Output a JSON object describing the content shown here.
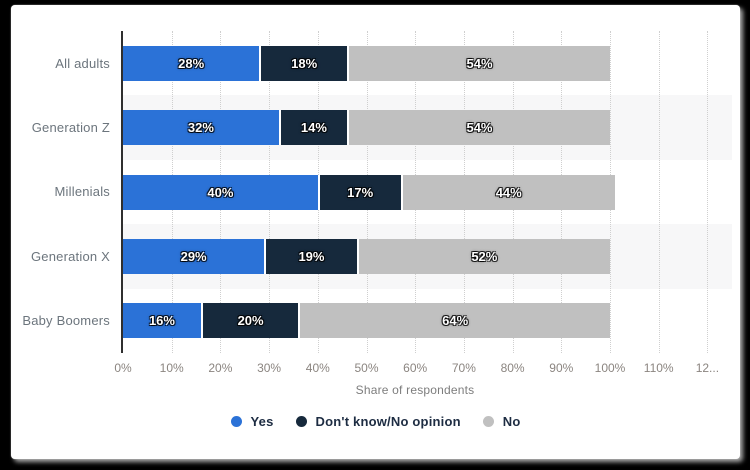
{
  "frame": {
    "background": "#000000",
    "card_background": "#ffffff"
  },
  "chart_data": {
    "type": "bar",
    "orientation": "horizontal",
    "stacked": true,
    "title": "",
    "xlabel": "Share of respondents",
    "ylabel": "",
    "categories": [
      "All adults",
      "Generation Z",
      "Millenials",
      "Generation X",
      "Baby Boomers"
    ],
    "series": [
      {
        "name": "Yes",
        "color": "#2b72d7",
        "values": [
          28,
          32,
          40,
          29,
          16
        ]
      },
      {
        "name": "Don't know/No opinion",
        "color": "#16293c",
        "values": [
          18,
          14,
          17,
          19,
          20
        ]
      },
      {
        "name": "No",
        "color": "#c0c0c0",
        "values": [
          54,
          54,
          44,
          52,
          64
        ]
      }
    ],
    "data_label_suffix": "%",
    "x_ticks": [
      "0%",
      "10%",
      "20%",
      "30%",
      "40%",
      "50%",
      "60%",
      "70%",
      "80%",
      "90%",
      "100%",
      "110%",
      "12..."
    ],
    "xlim": [
      0,
      120
    ],
    "grid": "dotted-vertical",
    "alternate_band_color": "#f7f7f8",
    "legend_position": "bottom"
  }
}
